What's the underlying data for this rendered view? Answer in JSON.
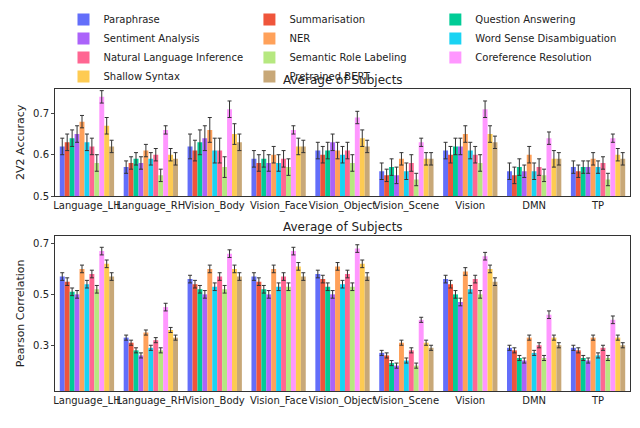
{
  "chart_data": [
    {
      "type": "bar",
      "title": "Average of Subjects",
      "y_label": "2V2 Accuracy",
      "legend": "top",
      "grid": false,
      "categories": [
        "Language_LH",
        "Language_RH",
        "Vision_Body",
        "Vision_Face",
        "Vision_Object",
        "Vision_Scene",
        "Vision",
        "DMN",
        "TP"
      ],
      "ylim": [
        0.5,
        0.76
      ],
      "yticks": [
        0.5,
        0.6,
        0.7
      ],
      "series": [
        {
          "name": "Paraphrase",
          "color": "#636efa",
          "values": [
            0.62,
            0.57,
            0.62,
            0.59,
            0.61,
            0.56,
            0.61,
            0.56,
            0.57
          ],
          "errors": [
            0.02,
            0.015,
            0.03,
            0.02,
            0.02,
            0.02,
            0.02,
            0.02,
            0.015
          ]
        },
        {
          "name": "Summarisation",
          "color": "#ef553b",
          "values": [
            0.63,
            0.58,
            0.61,
            0.58,
            0.6,
            0.55,
            0.6,
            0.55,
            0.56
          ],
          "errors": [
            0.02,
            0.015,
            0.025,
            0.02,
            0.02,
            0.015,
            0.02,
            0.02,
            0.015
          ]
        },
        {
          "name": "Question Answering",
          "color": "#00cc96",
          "values": [
            0.64,
            0.59,
            0.63,
            0.59,
            0.61,
            0.57,
            0.62,
            0.57,
            0.57
          ],
          "errors": [
            0.02,
            0.015,
            0.03,
            0.02,
            0.02,
            0.02,
            0.02,
            0.02,
            0.015
          ]
        },
        {
          "name": "Sentiment Analysis",
          "color": "#ab63fa",
          "values": [
            0.65,
            0.58,
            0.64,
            0.58,
            0.63,
            0.55,
            0.62,
            0.56,
            0.57
          ],
          "errors": [
            0.02,
            0.015,
            0.03,
            0.02,
            0.02,
            0.02,
            0.02,
            0.015,
            0.015
          ]
        },
        {
          "name": "NER",
          "color": "#ffa15a",
          "values": [
            0.68,
            0.61,
            0.66,
            0.6,
            0.61,
            0.59,
            0.65,
            0.6,
            0.59
          ],
          "errors": [
            0.015,
            0.015,
            0.03,
            0.02,
            0.02,
            0.015,
            0.02,
            0.02,
            0.015
          ]
        },
        {
          "name": "Word Sense Disambiguation",
          "color": "#19d3f3",
          "values": [
            0.63,
            0.59,
            0.61,
            0.58,
            0.6,
            0.56,
            0.61,
            0.56,
            0.57
          ],
          "errors": [
            0.02,
            0.015,
            0.03,
            0.02,
            0.02,
            0.02,
            0.02,
            0.02,
            0.015
          ]
        },
        {
          "name": "Natural Language Inference",
          "color": "#ff6692",
          "values": [
            0.62,
            0.6,
            0.61,
            0.59,
            0.61,
            0.58,
            0.6,
            0.57,
            0.58
          ],
          "errors": [
            0.02,
            0.015,
            0.03,
            0.02,
            0.02,
            0.02,
            0.02,
            0.02,
            0.015
          ]
        },
        {
          "name": "Semantic Role Labeling",
          "color": "#b6e880",
          "values": [
            0.58,
            0.55,
            0.57,
            0.57,
            0.58,
            0.54,
            0.58,
            0.55,
            0.54
          ],
          "errors": [
            0.02,
            0.015,
            0.025,
            0.02,
            0.02,
            0.015,
            0.02,
            0.015,
            0.015
          ]
        },
        {
          "name": "Coreference Resolution",
          "color": "#ff97ff",
          "values": [
            0.74,
            0.66,
            0.71,
            0.66,
            0.69,
            0.63,
            0.71,
            0.64,
            0.64
          ],
          "errors": [
            0.015,
            0.01,
            0.02,
            0.01,
            0.015,
            0.01,
            0.02,
            0.015,
            0.01
          ]
        },
        {
          "name": "Shallow Syntax",
          "color": "#fecb52",
          "values": [
            0.67,
            0.6,
            0.65,
            0.62,
            0.64,
            0.59,
            0.65,
            0.59,
            0.6
          ],
          "errors": [
            0.02,
            0.015,
            0.025,
            0.02,
            0.02,
            0.015,
            0.02,
            0.02,
            0.015
          ]
        },
        {
          "name": "Pretrained BERT",
          "color": "#c8a878",
          "values": [
            0.62,
            0.59,
            0.63,
            0.62,
            0.62,
            0.59,
            0.63,
            0.59,
            0.59
          ],
          "errors": [
            0.015,
            0.015,
            0.02,
            0.015,
            0.015,
            0.015,
            0.015,
            0.015,
            0.015
          ]
        }
      ]
    },
    {
      "type": "bar",
      "title": "Average of Subjects",
      "y_label": "Pearson Correlation",
      "grid": false,
      "categories": [
        "Language_LH",
        "Language_RH",
        "Vision_Body",
        "Vision_Face",
        "Vision_Object",
        "Vision_Scene",
        "Vision",
        "DMN",
        "TP"
      ],
      "ylim": [
        0.12,
        0.73
      ],
      "yticks": [
        0.3,
        0.5,
        0.7
      ],
      "series": [
        {
          "name": "Paraphrase",
          "color": "#636efa",
          "values": [
            0.57,
            0.33,
            0.56,
            0.57,
            0.58,
            0.27,
            0.56,
            0.29,
            0.29
          ],
          "errors": [
            0.015,
            0.01,
            0.015,
            0.015,
            0.015,
            0.01,
            0.015,
            0.01,
            0.01
          ]
        },
        {
          "name": "Summarisation",
          "color": "#ef553b",
          "values": [
            0.55,
            0.31,
            0.54,
            0.55,
            0.56,
            0.26,
            0.54,
            0.28,
            0.28
          ],
          "errors": [
            0.015,
            0.01,
            0.015,
            0.015,
            0.015,
            0.01,
            0.015,
            0.01,
            0.01
          ]
        },
        {
          "name": "Question Answering",
          "color": "#00cc96",
          "values": [
            0.51,
            0.28,
            0.52,
            0.52,
            0.53,
            0.23,
            0.5,
            0.25,
            0.25
          ],
          "errors": [
            0.015,
            0.01,
            0.015,
            0.015,
            0.015,
            0.01,
            0.015,
            0.01,
            0.01
          ]
        },
        {
          "name": "Sentiment Analysis",
          "color": "#ab63fa",
          "values": [
            0.5,
            0.26,
            0.5,
            0.5,
            0.5,
            0.22,
            0.47,
            0.24,
            0.24
          ],
          "errors": [
            0.015,
            0.01,
            0.015,
            0.015,
            0.015,
            0.01,
            0.015,
            0.01,
            0.01
          ]
        },
        {
          "name": "NER",
          "color": "#ffa15a",
          "values": [
            0.6,
            0.35,
            0.6,
            0.6,
            0.61,
            0.31,
            0.59,
            0.33,
            0.33
          ],
          "errors": [
            0.015,
            0.01,
            0.015,
            0.015,
            0.015,
            0.01,
            0.015,
            0.01,
            0.01
          ]
        },
        {
          "name": "Word Sense Disambiguation",
          "color": "#19d3f3",
          "values": [
            0.54,
            0.29,
            0.53,
            0.53,
            0.54,
            0.24,
            0.52,
            0.27,
            0.26
          ],
          "errors": [
            0.015,
            0.01,
            0.015,
            0.015,
            0.015,
            0.01,
            0.015,
            0.01,
            0.01
          ]
        },
        {
          "name": "Natural Language Inference",
          "color": "#ff6692",
          "values": [
            0.58,
            0.32,
            0.57,
            0.57,
            0.58,
            0.28,
            0.56,
            0.3,
            0.29
          ],
          "errors": [
            0.015,
            0.01,
            0.015,
            0.015,
            0.015,
            0.01,
            0.015,
            0.01,
            0.01
          ]
        },
        {
          "name": "Semantic Role Labeling",
          "color": "#b6e880",
          "values": [
            0.52,
            0.28,
            0.52,
            0.53,
            0.53,
            0.22,
            0.5,
            0.25,
            0.25
          ],
          "errors": [
            0.015,
            0.01,
            0.015,
            0.015,
            0.015,
            0.01,
            0.015,
            0.01,
            0.01
          ]
        },
        {
          "name": "Coreference Resolution",
          "color": "#ff97ff",
          "values": [
            0.67,
            0.45,
            0.66,
            0.67,
            0.68,
            0.4,
            0.65,
            0.42,
            0.4
          ],
          "errors": [
            0.015,
            0.015,
            0.015,
            0.015,
            0.015,
            0.01,
            0.015,
            0.015,
            0.015
          ]
        },
        {
          "name": "Shallow Syntax",
          "color": "#fecb52",
          "values": [
            0.62,
            0.36,
            0.6,
            0.61,
            0.62,
            0.31,
            0.6,
            0.33,
            0.33
          ],
          "errors": [
            0.015,
            0.01,
            0.015,
            0.015,
            0.015,
            0.01,
            0.015,
            0.01,
            0.01
          ]
        },
        {
          "name": "Pretrained BERT",
          "color": "#c8a878",
          "values": [
            0.57,
            0.33,
            0.57,
            0.57,
            0.57,
            0.29,
            0.55,
            0.3,
            0.3
          ],
          "errors": [
            0.015,
            0.01,
            0.015,
            0.015,
            0.015,
            0.01,
            0.015,
            0.01,
            0.01
          ]
        }
      ]
    }
  ]
}
